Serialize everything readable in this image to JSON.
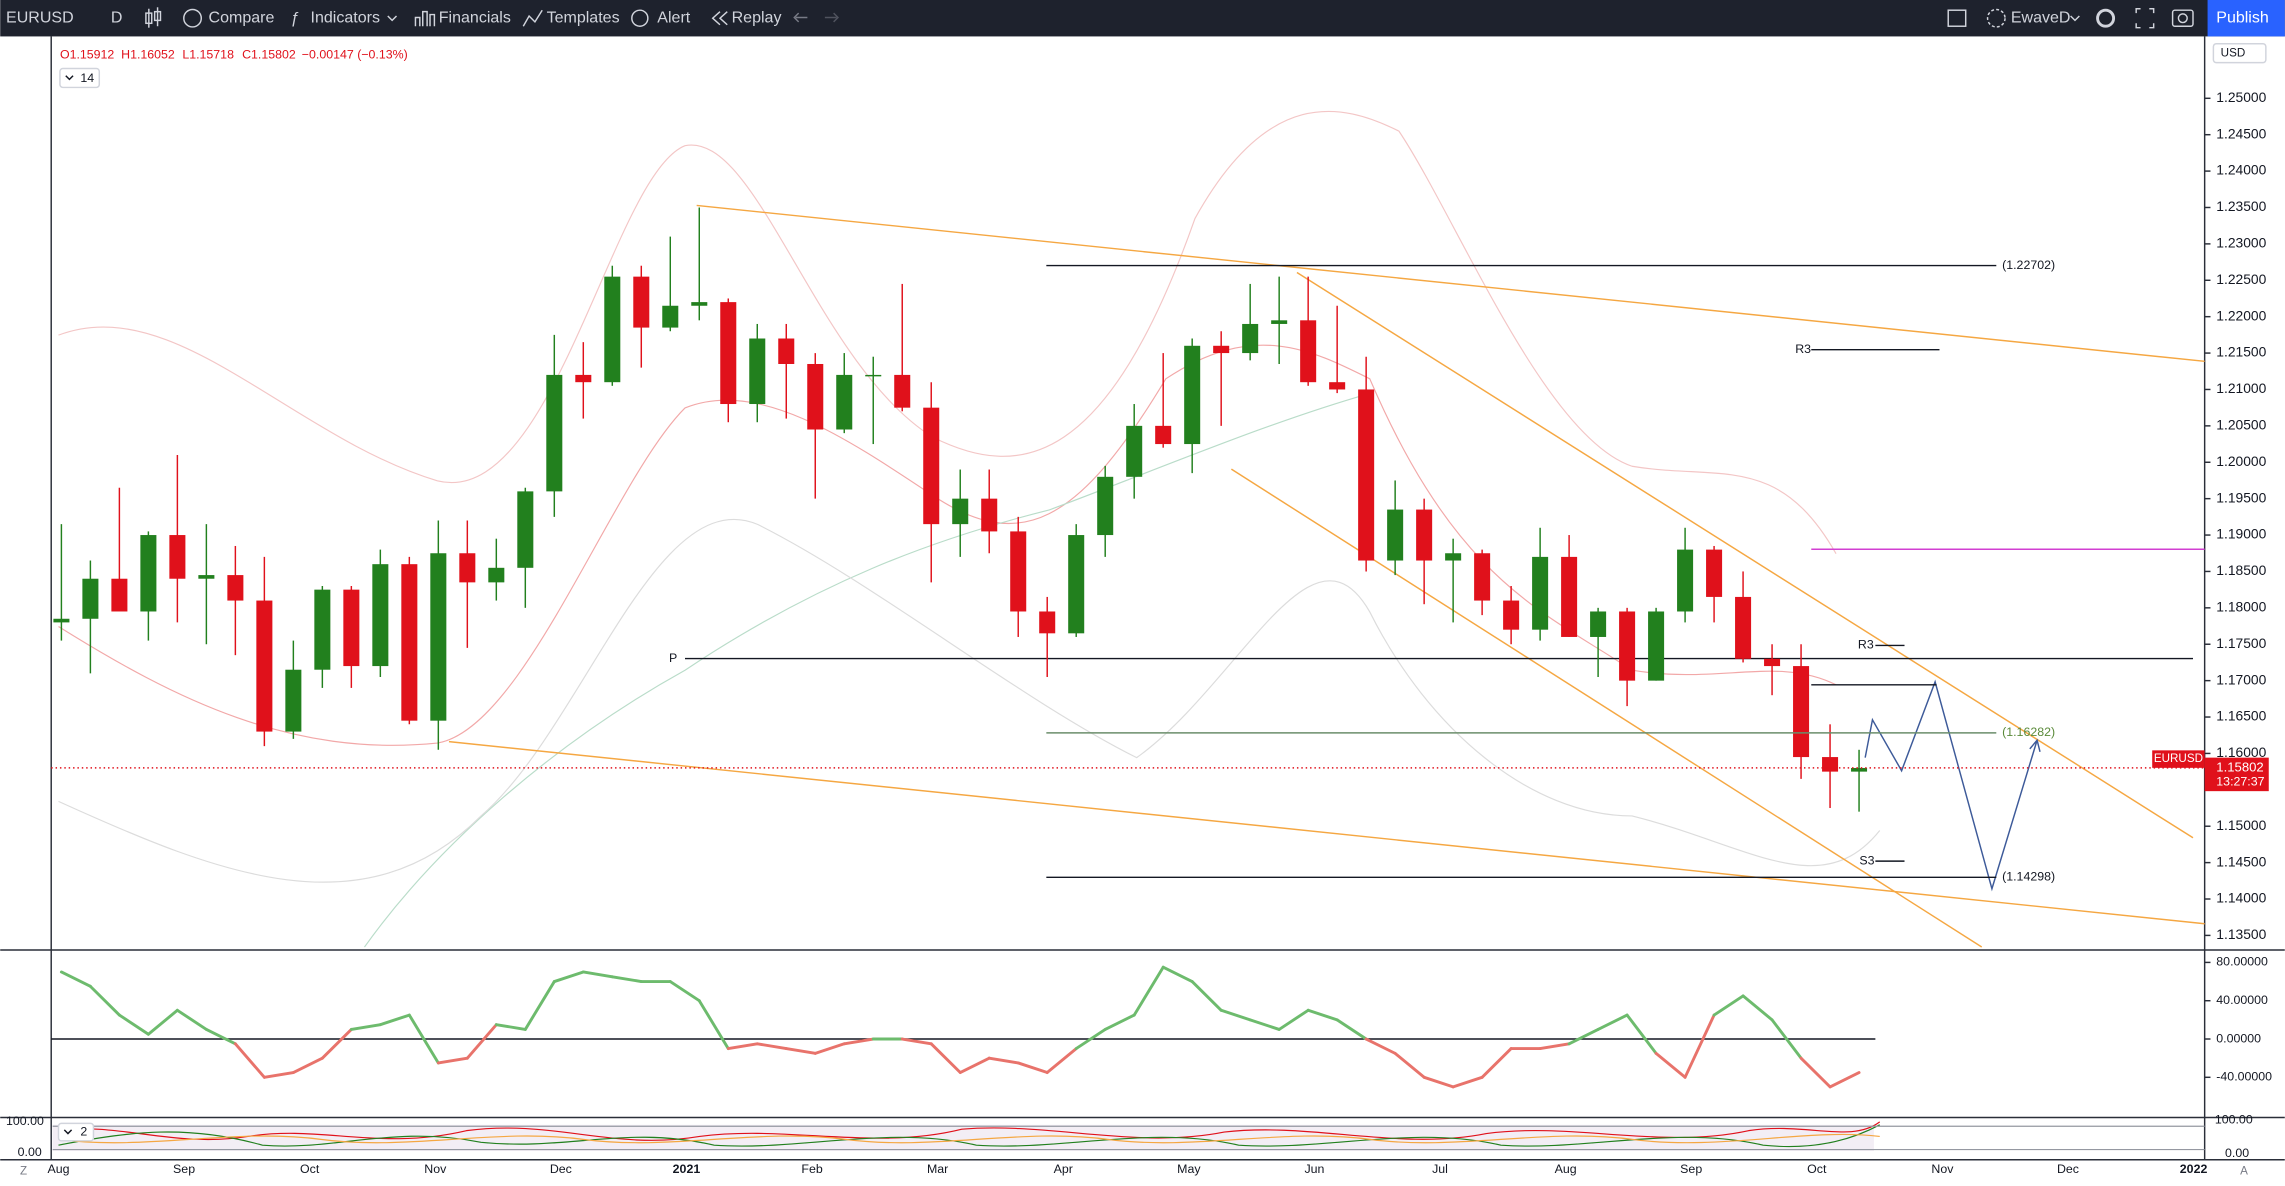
{
  "toolbar": {
    "symbol": "EURUSD",
    "interval": "D",
    "buttons": [
      "Compare",
      "Indicators",
      "Financials",
      "Templates",
      "Alert",
      "Replay"
    ],
    "layout": "EwaveD",
    "publish": "Publish"
  },
  "legend": {
    "items": [
      "O1.15912",
      "H1.16052",
      "L1.15718",
      "C1.15802",
      "−0.00147 (−0.13%)"
    ],
    "indicator_count": "14"
  },
  "price_axis": {
    "currency": "USD",
    "tag": "EURUSD",
    "last_price": 1.15802,
    "countdown": "13:27:37"
  },
  "levels": [
    {
      "value": 1.22702,
      "label": "(1.22702)"
    },
    {
      "value": 1.16282,
      "label": "(1.16282)"
    },
    {
      "value": 1.14298,
      "label": "(1.14298)"
    }
  ],
  "pivot_labels": [
    "R3",
    "R3",
    "P",
    "S3"
  ],
  "time_labels": [
    "Aug",
    "Sep",
    "Oct",
    "Nov",
    "Dec",
    "2021",
    "Feb",
    "Mar",
    "Apr",
    "May",
    "Jun",
    "Jul",
    "Aug",
    "Sep",
    "Oct",
    "Nov",
    "Dec",
    "2022"
  ],
  "chart_data": [
    {
      "type": "candlestick",
      "up_color": "#22801e",
      "down_color": "#e0111b",
      "open": [
        1.178,
        1.1785,
        1.184,
        1.1795,
        1.19,
        1.184,
        1.1845,
        1.181,
        1.163,
        1.1715,
        1.1825,
        1.172,
        1.186,
        1.1645,
        1.1875,
        1.1835,
        1.1855,
        1.196,
        1.212,
        1.211,
        1.2255,
        1.2185,
        1.2215,
        1.222,
        1.208,
        1.217,
        1.2135,
        1.2045,
        1.212,
        1.212,
        1.2075,
        1.1915,
        1.195,
        1.1905,
        1.1795,
        1.1765,
        1.19,
        1.198,
        1.205,
        1.2025,
        1.216,
        1.215,
        1.219,
        1.2195,
        1.211,
        1.21,
        1.1865,
        1.1935,
        1.1865,
        1.1875,
        1.181,
        1.177,
        1.187,
        1.176,
        1.1795,
        1.17,
        1.1795,
        1.188,
        1.1815,
        1.173,
        1.172,
        1.1595,
        1.1575
      ],
      "high": [
        1.1915,
        1.1865,
        1.1965,
        1.1905,
        1.201,
        1.1915,
        1.1885,
        1.187,
        1.1755,
        1.183,
        1.183,
        1.188,
        1.187,
        1.192,
        1.192,
        1.1895,
        1.1965,
        1.2175,
        1.2165,
        1.227,
        1.227,
        1.231,
        1.235,
        1.2225,
        1.219,
        1.219,
        1.215,
        1.215,
        1.2145,
        1.2245,
        1.211,
        1.199,
        1.199,
        1.1925,
        1.1815,
        1.1915,
        1.1995,
        1.208,
        1.215,
        1.217,
        1.218,
        1.2245,
        1.2255,
        1.2255,
        1.2215,
        1.2145,
        1.1975,
        1.195,
        1.1895,
        1.188,
        1.183,
        1.191,
        1.19,
        1.18,
        1.18,
        1.18,
        1.191,
        1.1885,
        1.185,
        1.175,
        1.175,
        1.164,
        1.1605
      ],
      "low": [
        1.1755,
        1.171,
        1.18,
        1.1755,
        1.178,
        1.175,
        1.1735,
        1.161,
        1.162,
        1.169,
        1.169,
        1.1705,
        1.164,
        1.1605,
        1.1745,
        1.181,
        1.18,
        1.1925,
        1.206,
        1.2105,
        1.213,
        1.218,
        1.2195,
        1.2055,
        1.2055,
        1.206,
        1.195,
        1.204,
        1.2025,
        1.207,
        1.1835,
        1.187,
        1.1875,
        1.176,
        1.1705,
        1.176,
        1.187,
        1.195,
        1.202,
        1.1985,
        1.205,
        1.214,
        1.2135,
        1.2105,
        1.2095,
        1.185,
        1.1845,
        1.1805,
        1.178,
        1.179,
        1.175,
        1.1755,
        1.176,
        1.1705,
        1.1665,
        1.17,
        1.178,
        1.178,
        1.1725,
        1.168,
        1.1565,
        1.1525,
        1.152
      ],
      "close": [
        1.1785,
        1.184,
        1.1795,
        1.19,
        1.184,
        1.1845,
        1.181,
        1.163,
        1.1715,
        1.1825,
        1.172,
        1.186,
        1.1645,
        1.1875,
        1.1835,
        1.1855,
        1.196,
        1.212,
        1.211,
        1.2255,
        1.2185,
        1.2215,
        1.222,
        1.208,
        1.217,
        1.2135,
        1.2045,
        1.212,
        1.212,
        1.2075,
        1.1915,
        1.195,
        1.1905,
        1.1795,
        1.1765,
        1.19,
        1.198,
        1.205,
        1.2025,
        1.216,
        1.215,
        1.219,
        1.2195,
        1.211,
        1.21,
        1.1865,
        1.1935,
        1.1865,
        1.1875,
        1.181,
        1.177,
        1.187,
        1.176,
        1.1795,
        1.17,
        1.1795,
        1.188,
        1.1815,
        1.173,
        1.172,
        1.1595,
        1.1575,
        1.158
      ],
      "ylim": [
        1.1332,
        1.2583
      ],
      "yticks": [
        {
          "value": 1.25,
          "label": "1.25000"
        },
        {
          "value": 1.245,
          "label": "1.24500"
        },
        {
          "value": 1.24,
          "label": "1.24000"
        },
        {
          "value": 1.235,
          "label": "1.23500"
        },
        {
          "value": 1.23,
          "label": "1.23000"
        },
        {
          "value": 1.225,
          "label": "1.22500"
        },
        {
          "value": 1.22,
          "label": "1.22000"
        },
        {
          "value": 1.215,
          "label": "1.21500"
        },
        {
          "value": 1.21,
          "label": "1.21000"
        },
        {
          "value": 1.205,
          "label": "1.20500"
        },
        {
          "value": 1.2,
          "label": "1.20000"
        },
        {
          "value": 1.195,
          "label": "1.19500"
        },
        {
          "value": 1.19,
          "label": "1.19000"
        },
        {
          "value": 1.185,
          "label": "1.18500"
        },
        {
          "value": 1.18,
          "label": "1.18000"
        },
        {
          "value": 1.175,
          "label": "1.17500"
        },
        {
          "value": 1.17,
          "label": "1.17000"
        },
        {
          "value": 1.165,
          "label": "1.16500"
        },
        {
          "value": 1.16,
          "label": "1.16000"
        },
        {
          "value": 1.15,
          "label": "1.15000"
        },
        {
          "value": 1.145,
          "label": "1.14500"
        },
        {
          "value": 1.14,
          "label": "1.14000"
        },
        {
          "value": 1.135,
          "label": "1.13500"
        }
      ],
      "grid": false
    },
    {
      "type": "line",
      "values": [
        70,
        55,
        25,
        5,
        30,
        10,
        -5,
        -40,
        -35,
        -20,
        10,
        15,
        25,
        -25,
        -20,
        15,
        10,
        60,
        70,
        65,
        60,
        60,
        40,
        -10,
        -5,
        -10,
        -15,
        -5,
        0,
        0,
        -5,
        -35,
        -20,
        -25,
        -35,
        -10,
        10,
        25,
        75,
        60,
        30,
        20,
        10,
        30,
        20,
        0,
        -15,
        -40,
        -50,
        -40,
        -10,
        -10,
        -5,
        10,
        25,
        -15,
        -40,
        25,
        45,
        20,
        -20,
        -50,
        -35
      ],
      "positive_color": "#6dbb6d",
      "negative_color": "#e8736b",
      "ylim": [
        -82,
        93
      ],
      "yticks": [
        {
          "value": 80,
          "label": "80.00000"
        },
        {
          "value": 40,
          "label": "40.00000"
        },
        {
          "value": 0,
          "label": "0.00000"
        },
        {
          "value": -40,
          "label": "-40.00000"
        }
      ]
    }
  ],
  "bottom_panel": {
    "count": "2",
    "ticks": [
      {
        "value": 100,
        "label": "100.00"
      },
      {
        "value": 0,
        "label": "0.00"
      }
    ]
  },
  "footer": {
    "left": "Z",
    "right": "A"
  }
}
